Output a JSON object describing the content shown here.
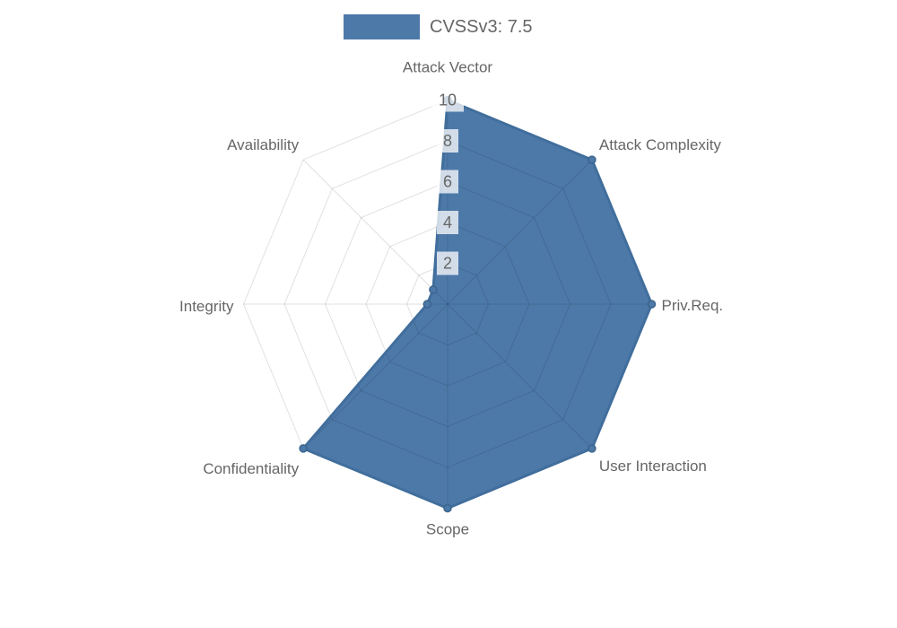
{
  "legend": {
    "label": "CVSSv3: 7.5"
  },
  "chart_data": {
    "type": "radar",
    "title": "",
    "axes": [
      "Attack Vector",
      "Attack Complexity",
      "Priv.Req.",
      "User Interaction",
      "Scope",
      "Confidentiality",
      "Integrity",
      "Availability"
    ],
    "series": [
      {
        "name": "CVSSv3: 7.5",
        "values": [
          10,
          10,
          10,
          10,
          10,
          10,
          1,
          1
        ]
      }
    ],
    "ticks": [
      2,
      4,
      6,
      8,
      10
    ],
    "rmin": 0,
    "rmax": 10,
    "grid": "polygon-web",
    "legend_position": "top",
    "legend_label": "CVSSv3: 7.5",
    "fill_color": "#4d79a9",
    "border_color": "#416e9c",
    "marker_stroke": "#3a648c",
    "grid_color": "rgba(0,0,0,0.12)",
    "tick_backdrop": "rgba(255,255,255,0.75)",
    "text_color": "#666666"
  }
}
